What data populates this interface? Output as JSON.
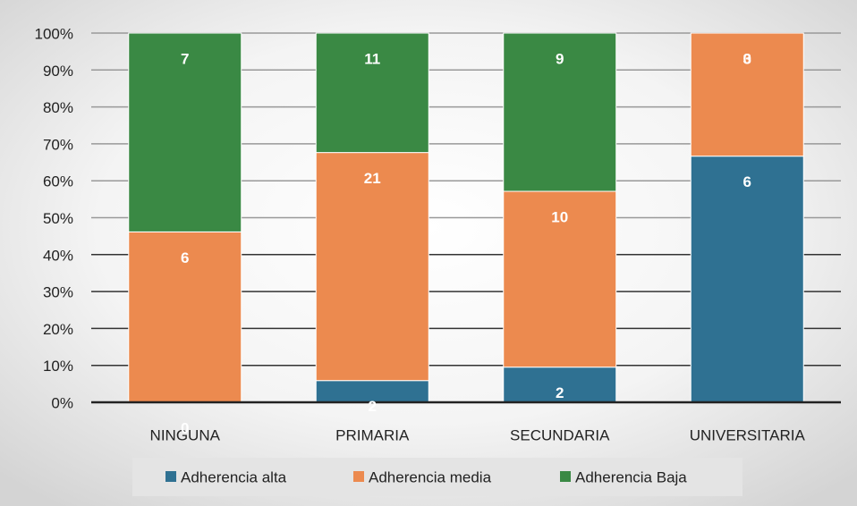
{
  "chart_data": {
    "type": "bar",
    "stacking": "percent",
    "categories": [
      "NINGUNA",
      "PRIMARIA",
      "SECUNDARIA",
      "UNIVERSITARIA"
    ],
    "series": [
      {
        "name": "Adherencia alta",
        "color": "#2f7192",
        "values": [
          0,
          2,
          2,
          6
        ]
      },
      {
        "name": "Adherencia media",
        "color": "#ec8a4f",
        "values": [
          6,
          21,
          10,
          3
        ]
      },
      {
        "name": "Adherencia Baja",
        "color": "#3a8944",
        "values": [
          7,
          11,
          9,
          0
        ]
      }
    ],
    "ylim": [
      0,
      100
    ],
    "yticks": [
      {
        "value": 0,
        "label": "0%"
      },
      {
        "value": 10,
        "label": "10%"
      },
      {
        "value": 20,
        "label": "20%"
      },
      {
        "value": 30,
        "label": "30%"
      },
      {
        "value": 40,
        "label": "40%"
      },
      {
        "value": 50,
        "label": "50%"
      },
      {
        "value": 60,
        "label": "60%"
      },
      {
        "value": 70,
        "label": "70%"
      },
      {
        "value": 80,
        "label": "80%"
      },
      {
        "value": 90,
        "label": "90%"
      },
      {
        "value": 100,
        "label": "100%"
      }
    ],
    "grid": true,
    "legend": "bottom"
  }
}
